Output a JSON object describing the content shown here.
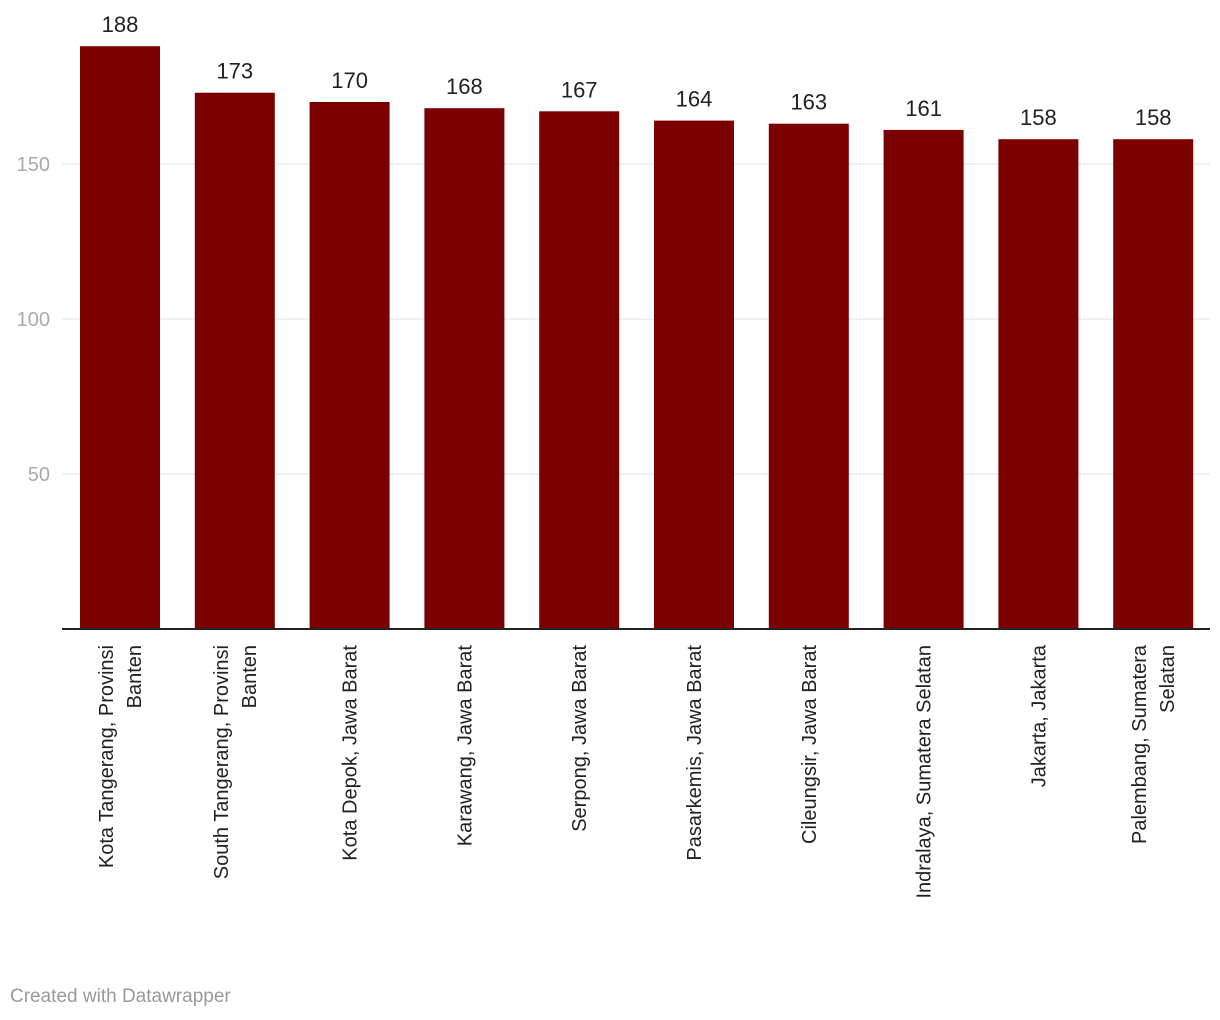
{
  "chart_data": {
    "type": "bar",
    "categories": [
      [
        "Kota Tangerang, Provinsi",
        "Banten"
      ],
      [
        "South Tangerang, Provinsi",
        "Banten"
      ],
      [
        "Kota Depok, Jawa Barat"
      ],
      [
        "Karawang, Jawa Barat"
      ],
      [
        "Serpong, Jawa Barat"
      ],
      [
        "Pasarkemis, Jawa Barat"
      ],
      [
        "Cileungsir, Jawa Barat"
      ],
      [
        "Indralaya, Sumatera Selatan"
      ],
      [
        "Jakarta, Jakarta"
      ],
      [
        "Palembang, Sumatera",
        "Selatan"
      ]
    ],
    "values": [
      188,
      173,
      170,
      168,
      167,
      164,
      163,
      161,
      158,
      158
    ],
    "yticks": [
      50,
      100,
      150
    ],
    "ylim": [
      0,
      190
    ],
    "grid": true,
    "bar_color": "#7b0000",
    "title": "",
    "xlabel": "",
    "ylabel": ""
  },
  "footer": {
    "credit": "Created with Datawrapper"
  }
}
